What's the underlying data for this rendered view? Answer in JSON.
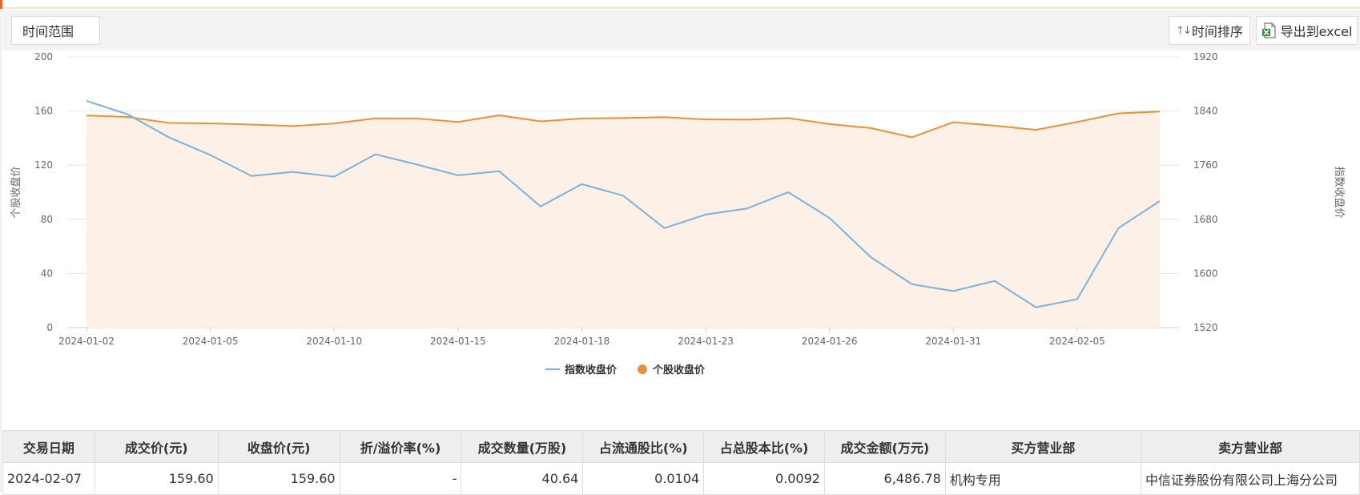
{
  "toolbar": {
    "range_label": "时间范围",
    "sort_label": "时间排序",
    "export_label": "导出到excel"
  },
  "chart_data": {
    "type": "line",
    "x": [
      "2024-01-02",
      "2024-01-03",
      "2024-01-04",
      "2024-01-05",
      "2024-01-08",
      "2024-01-09",
      "2024-01-10",
      "2024-01-11",
      "2024-01-12",
      "2024-01-15",
      "2024-01-16",
      "2024-01-17",
      "2024-01-18",
      "2024-01-19",
      "2024-01-22",
      "2024-01-23",
      "2024-01-24",
      "2024-01-25",
      "2024-01-26",
      "2024-01-29",
      "2024-01-30",
      "2024-01-31",
      "2024-02-01",
      "2024-02-02",
      "2024-02-05",
      "2024-02-06",
      "2024-02-07"
    ],
    "x_tick_labels": [
      "2024-01-02",
      "2024-01-05",
      "2024-01-10",
      "2024-01-15",
      "2024-01-18",
      "2024-01-23",
      "2024-01-26",
      "2024-01-31",
      "2024-02-05"
    ],
    "y_left": {
      "label": "个股收盘价",
      "range": [
        0,
        200
      ],
      "ticks": [
        "0",
        "40",
        "80",
        "120",
        "160",
        "200"
      ]
    },
    "y_right": {
      "label": "指数收盘价",
      "range": [
        1520,
        1920
      ],
      "ticks": [
        "1520",
        "1600",
        "1680",
        "1760",
        "1840",
        "1920"
      ]
    },
    "series": [
      {
        "name": "指数收盘价",
        "axis": "right",
        "color": "#7eb0dc",
        "legend_marker": "line",
        "values": [
          1855,
          1835,
          1801,
          1775,
          1744,
          1750,
          1743,
          1776,
          1761,
          1745,
          1751,
          1699,
          1732,
          1715,
          1667,
          1687,
          1696,
          1720,
          1682,
          1624,
          1584,
          1574,
          1589,
          1550,
          1562,
          1667,
          1707
        ]
      },
      {
        "name": "个股收盘价",
        "axis": "left",
        "color": "#e8913a",
        "fill": "#fdf1e7",
        "legend_marker": "circle",
        "values": [
          156.7,
          155.6,
          151.2,
          150.9,
          150.0,
          148.9,
          150.8,
          154.6,
          154.5,
          151.9,
          156.9,
          152.4,
          154.5,
          154.8,
          155.5,
          153.8,
          153.6,
          154.8,
          150.4,
          147.4,
          140.6,
          151.8,
          149.2,
          146.1,
          151.9,
          158.3,
          159.6
        ]
      }
    ],
    "grid": true,
    "legend": "bottom-center"
  },
  "table": {
    "headers": [
      "交易日期",
      "成交价(元)",
      "收盘价(元)",
      "折/溢价率(%)",
      "成交数量(万股)",
      "占流通股比(%)",
      "占总股本比(%)",
      "成交金额(万元)",
      "买方营业部",
      "卖方营业部"
    ],
    "rows": [
      [
        "2024-02-07",
        "159.60",
        "159.60",
        "-",
        "40.64",
        "0.0104",
        "0.0092",
        "6,486.78",
        "机构专用",
        "中信证券股份有限公司上海分公司"
      ]
    ]
  }
}
